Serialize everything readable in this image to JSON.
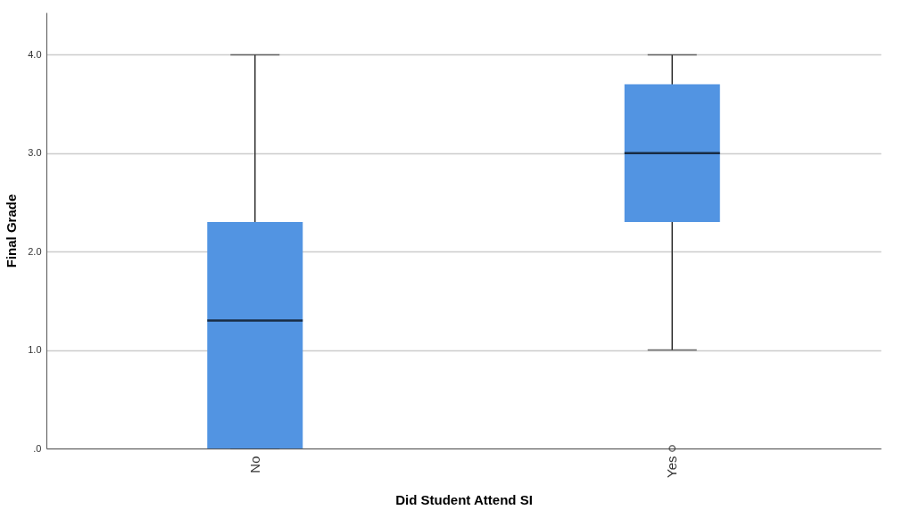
{
  "chart_data": {
    "type": "box",
    "xlabel": "Did Student Attend SI",
    "ylabel": "Final Grade",
    "categories": [
      "No",
      "Yes"
    ],
    "boxes": [
      {
        "low": 0,
        "q1": 0,
        "median": 1.3,
        "q3": 2.3,
        "high": 4.0
      },
      {
        "low": 1.0,
        "q1": 2.3,
        "median": 3.0,
        "q3": 3.7,
        "high": 4.0,
        "outliers": [
          0
        ]
      }
    ],
    "color": "#5294e2",
    "ylim": [
      0,
      4.43
    ],
    "yticks": [
      {
        "value": 0,
        "label": ".0"
      },
      {
        "value": 1,
        "label": "1.0"
      },
      {
        "value": 2,
        "label": "2.0"
      },
      {
        "value": 3,
        "label": "3.0"
      },
      {
        "value": 4,
        "label": "4.0"
      }
    ],
    "grid": "y"
  }
}
